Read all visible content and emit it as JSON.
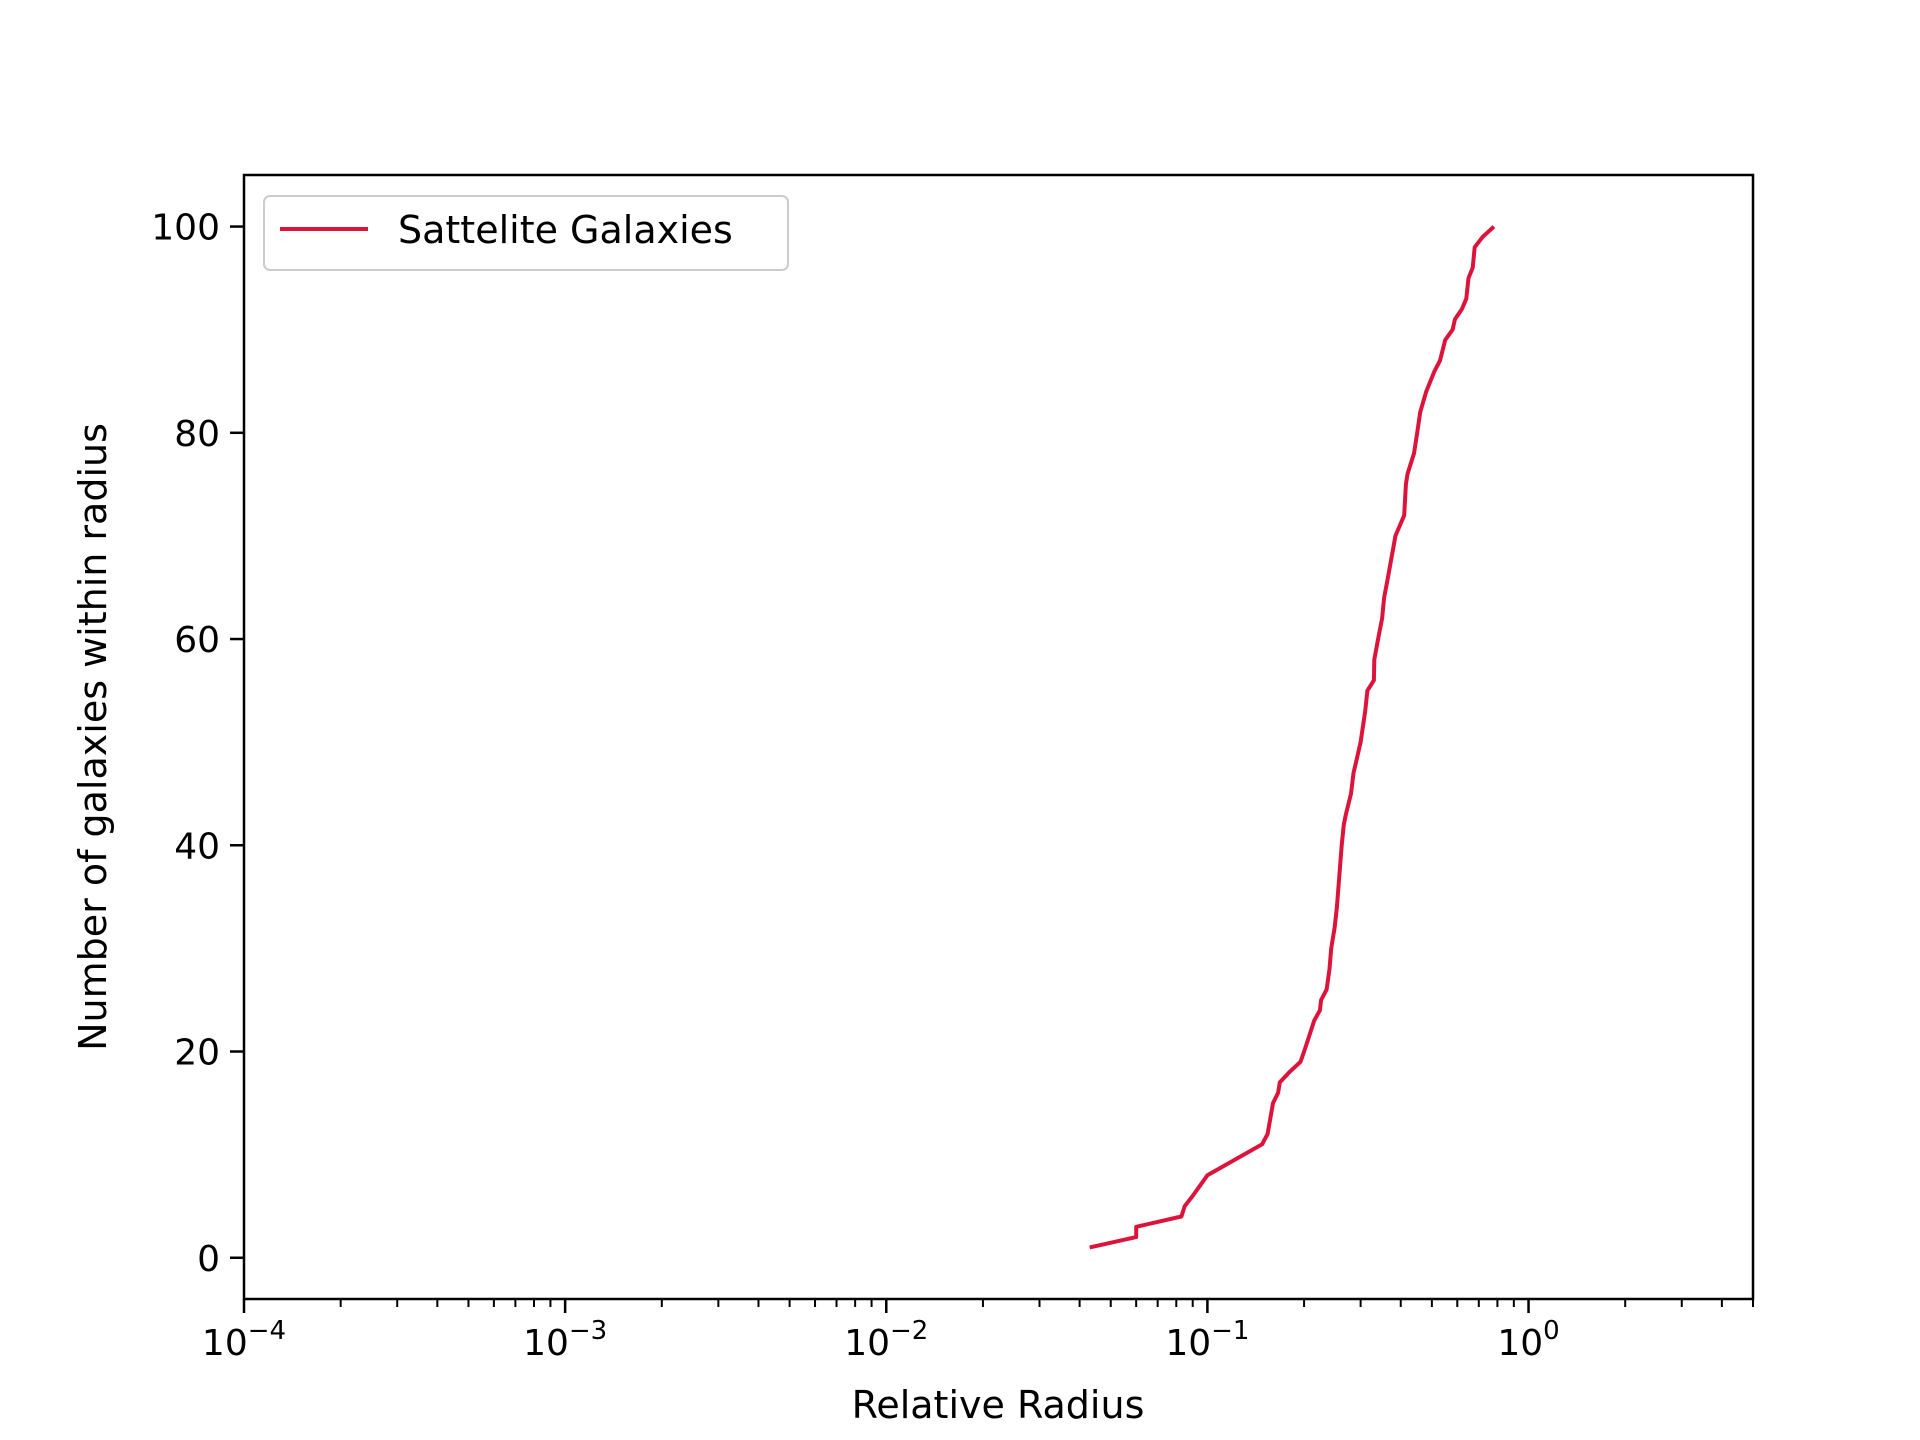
{
  "chart_data": {
    "type": "line",
    "xlabel": "Relative Radius",
    "ylabel": "Number of galaxies within radius",
    "xscale": "log",
    "xlim": [
      0.0001,
      5.0
    ],
    "ylim": [
      -4,
      105
    ],
    "x_ticks": [
      {
        "value": 0.0001,
        "base": "10",
        "exp": "−4"
      },
      {
        "value": 0.001,
        "base": "10",
        "exp": "−3"
      },
      {
        "value": 0.01,
        "base": "10",
        "exp": "−2"
      },
      {
        "value": 0.1,
        "base": "10",
        "exp": "−1"
      },
      {
        "value": 1,
        "base": "10",
        "exp": "0"
      }
    ],
    "y_ticks": [
      0,
      20,
      40,
      60,
      80,
      100
    ],
    "grid": false,
    "legend": {
      "position": "upper-left",
      "entries": [
        "Sattelite Galaxies"
      ]
    },
    "series": [
      {
        "name": "Sattelite Galaxies",
        "color": "#dc143c",
        "x": [
          0.043,
          0.06,
          0.06,
          0.083,
          0.085,
          0.09,
          0.1,
          0.148,
          0.154,
          0.156,
          0.16,
          0.166,
          0.168,
          0.18,
          0.195,
          0.2,
          0.205,
          0.215,
          0.224,
          0.226,
          0.235,
          0.24,
          0.243,
          0.249,
          0.253,
          0.256,
          0.259,
          0.262,
          0.266,
          0.27,
          0.28,
          0.285,
          0.29,
          0.3,
          0.31,
          0.315,
          0.33,
          0.331,
          0.34,
          0.35,
          0.355,
          0.365,
          0.375,
          0.38,
          0.385,
          0.41,
          0.415,
          0.42,
          0.44,
          0.45,
          0.46,
          0.48,
          0.51,
          0.53,
          0.55,
          0.58,
          0.59,
          0.62,
          0.64,
          0.65,
          0.67,
          0.68,
          0.72,
          0.75,
          0.78
        ],
        "y": [
          1,
          2,
          3,
          4,
          5,
          6,
          8,
          11,
          12,
          13,
          15,
          16,
          17,
          18,
          19,
          20,
          21,
          23,
          24,
          25,
          26,
          28,
          30,
          32,
          34,
          36,
          38,
          40,
          42,
          43,
          45,
          47,
          48,
          50,
          53,
          55,
          56,
          58,
          60,
          62,
          64,
          66,
          68,
          69,
          70,
          72,
          75,
          76,
          78,
          80,
          82,
          84,
          86,
          87,
          89,
          90,
          91,
          92,
          93,
          95,
          96,
          98,
          99,
          99.5,
          100
        ]
      }
    ]
  }
}
